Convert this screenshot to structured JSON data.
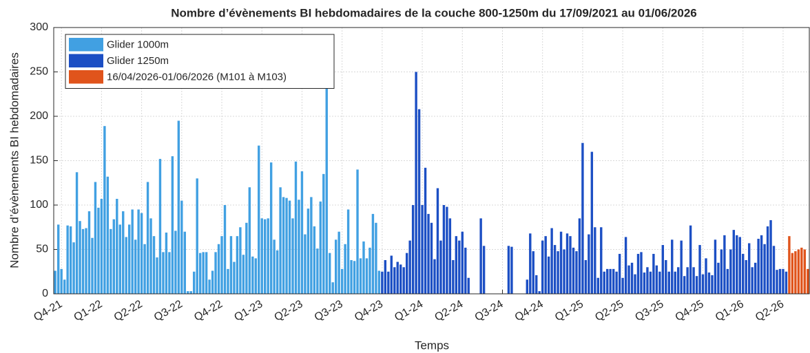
{
  "chart_data": {
    "type": "bar",
    "title": "Nombre d’évènements BI hebdomadaires de la couche 800-1250m du 17/09/2021 au 01/06/2026",
    "xlabel": "Temps",
    "ylabel": "Nombre d’évènements BI hebdomadaires",
    "ylim": [
      0,
      300
    ],
    "yticks": [
      0,
      50,
      100,
      150,
      200,
      250,
      300
    ],
    "grid": true,
    "legend": "upper left",
    "categories": [
      null,
      null,
      "Q4-21",
      null,
      null,
      null,
      null,
      null,
      null,
      null,
      null,
      null,
      null,
      null,
      null,
      "Q1-22",
      null,
      null,
      null,
      null,
      null,
      null,
      null,
      null,
      null,
      null,
      null,
      null,
      "Q2-22",
      null,
      null,
      null,
      null,
      null,
      null,
      null,
      null,
      null,
      null,
      null,
      null,
      "Q3-22",
      null,
      null,
      null,
      null,
      null,
      null,
      null,
      null,
      null,
      null,
      null,
      null,
      "Q4-22",
      null,
      null,
      null,
      null,
      null,
      null,
      null,
      null,
      null,
      null,
      null,
      null,
      "Q1-23",
      null,
      null,
      null,
      null,
      null,
      null,
      null,
      null,
      null,
      null,
      null,
      null,
      "Q2-23",
      null,
      null,
      null,
      null,
      null,
      null,
      null,
      null,
      null,
      null,
      null,
      null,
      "Q3-23",
      null,
      null,
      null,
      null,
      null,
      null,
      null,
      null,
      null,
      null,
      null,
      null,
      "Q4-23",
      null,
      null,
      null,
      null,
      null,
      null,
      null,
      null,
      null,
      null,
      null,
      null,
      "Q1-24",
      null,
      null,
      null,
      null,
      null,
      null,
      null,
      null,
      null,
      null,
      null,
      null,
      "Q2-24",
      null,
      null,
      null,
      null,
      null,
      null,
      null,
      null,
      null,
      null,
      null,
      null,
      "Q3-24",
      null,
      null,
      null,
      null,
      null,
      null,
      null,
      null,
      null,
      null,
      null,
      null,
      "Q4-24",
      null,
      null,
      null,
      null,
      null,
      null,
      null,
      null,
      null,
      null,
      null,
      null,
      "Q1-25",
      null,
      null,
      null,
      null,
      null,
      null,
      null,
      null,
      null,
      null,
      null,
      null,
      "Q2-25",
      null,
      null,
      null,
      null,
      null,
      null,
      null,
      null,
      null,
      null,
      null,
      null,
      "Q3-25",
      null,
      null,
      null,
      null,
      null,
      null,
      null,
      null,
      null,
      null,
      null,
      null,
      "Q4-25",
      null,
      null,
      null,
      null,
      null,
      null,
      null,
      null,
      null,
      null,
      null,
      null,
      "Q1-26",
      null,
      null,
      null,
      null,
      null,
      null,
      null,
      null,
      null,
      null,
      null,
      null,
      "Q2-26",
      null,
      null,
      null,
      null,
      null,
      null,
      null,
      null
    ],
    "series": [
      {
        "name": "Glider 1000m",
        "color": "#41a0e2",
        "values": [
          26,
          78,
          28,
          16,
          77,
          76,
          58,
          137,
          82,
          73,
          74,
          93,
          63,
          126,
          97,
          107,
          189,
          132,
          73,
          84,
          107,
          78,
          93,
          64,
          78,
          95,
          61,
          95,
          91,
          56,
          126,
          85,
          65,
          41,
          152,
          47,
          69,
          47,
          155,
          71,
          195,
          105,
          70,
          3,
          3,
          25,
          130,
          46,
          47,
          47,
          16,
          26,
          47,
          56,
          65,
          100,
          28,
          65,
          36,
          65,
          75,
          44,
          80,
          120,
          42,
          40,
          167,
          85,
          84,
          85,
          148,
          61,
          49,
          120,
          109,
          108,
          105,
          85,
          149,
          106,
          138,
          67,
          96,
          109,
          76,
          51,
          104,
          135,
          240,
          46,
          13,
          61,
          70,
          28,
          56,
          95,
          38,
          37,
          140,
          40,
          59,
          40,
          52,
          90,
          80,
          26,
          null,
          null,
          null,
          null,
          null,
          null,
          null,
          null,
          null,
          null,
          null,
          null,
          null,
          null,
          null,
          null,
          null,
          null,
          null,
          null,
          null,
          null,
          null,
          null,
          null,
          null,
          null,
          null,
          null,
          null,
          null,
          null,
          null,
          null,
          null,
          null,
          null,
          null,
          null,
          null,
          null,
          null,
          null,
          null,
          null,
          null,
          null,
          null,
          null,
          null,
          null,
          null,
          null,
          null,
          null,
          null,
          null,
          null,
          null,
          null,
          null,
          null,
          null,
          null,
          null,
          null,
          null,
          null,
          null,
          null,
          null,
          null,
          null,
          null,
          null,
          null,
          null,
          null,
          null,
          null,
          null,
          null,
          null,
          null,
          null,
          null,
          null,
          null,
          null,
          null,
          null,
          null,
          null,
          null,
          null,
          null,
          null,
          null,
          null,
          null,
          null,
          null,
          null,
          null,
          null,
          null,
          null,
          null,
          null,
          null,
          null,
          null,
          null,
          null,
          null,
          null,
          null,
          null,
          null,
          null,
          null,
          null,
          null,
          null,
          null,
          null,
          null,
          null,
          null,
          null,
          null,
          null,
          null,
          null,
          null,
          null,
          null,
          null,
          null
        ]
      },
      {
        "name": "Glider 1250m",
        "color": "#1c4fc4",
        "values": [
          null,
          null,
          null,
          null,
          null,
          null,
          null,
          null,
          null,
          null,
          null,
          null,
          null,
          null,
          null,
          null,
          null,
          null,
          null,
          null,
          null,
          null,
          null,
          null,
          null,
          null,
          null,
          null,
          null,
          null,
          null,
          null,
          null,
          null,
          null,
          null,
          null,
          null,
          null,
          null,
          null,
          null,
          null,
          null,
          null,
          null,
          null,
          null,
          null,
          null,
          null,
          null,
          null,
          null,
          null,
          null,
          null,
          null,
          null,
          null,
          null,
          null,
          null,
          null,
          null,
          null,
          null,
          null,
          null,
          null,
          null,
          null,
          null,
          null,
          null,
          null,
          null,
          null,
          null,
          null,
          null,
          null,
          null,
          null,
          null,
          null,
          null,
          null,
          null,
          null,
          null,
          null,
          null,
          null,
          null,
          null,
          null,
          null,
          null,
          null,
          null,
          null,
          null,
          null,
          null,
          null,
          25,
          38,
          25,
          43,
          30,
          36,
          33,
          30,
          46,
          60,
          100,
          250,
          208,
          100,
          142,
          90,
          80,
          39,
          119,
          60,
          100,
          98,
          85,
          38,
          65,
          60,
          70,
          52,
          18,
          0,
          0,
          0,
          85,
          54,
          0,
          0,
          0,
          0,
          0,
          0,
          0,
          54,
          53,
          0,
          0,
          0,
          0,
          16,
          68,
          48,
          21,
          3,
          60,
          65,
          42,
          74,
          55,
          48,
          70,
          50,
          68,
          65,
          52,
          48,
          85,
          170,
          38,
          67,
          160,
          75,
          18,
          75,
          25,
          28,
          28,
          28,
          25,
          45,
          18,
          64,
          32,
          35,
          22,
          45,
          47,
          24,
          30,
          25,
          45,
          32,
          25,
          55,
          38,
          25,
          61,
          25,
          30,
          60,
          20,
          30,
          77,
          30,
          20,
          55,
          22,
          40,
          24,
          21,
          61,
          35,
          50,
          66,
          28,
          50,
          72,
          66,
          64,
          45,
          38,
          57,
          30,
          35,
          62,
          66,
          56,
          76,
          83,
          54,
          27,
          28,
          28,
          25,
          null,
          null,
          null,
          null,
          null,
          null,
          null
        ]
      },
      {
        "name": "16/04/2026-01/06/2026 (M101 à M103)",
        "color": "#e0541c",
        "values": [
          null,
          null,
          null,
          null,
          null,
          null,
          null,
          null,
          null,
          null,
          null,
          null,
          null,
          null,
          null,
          null,
          null,
          null,
          null,
          null,
          null,
          null,
          null,
          null,
          null,
          null,
          null,
          null,
          null,
          null,
          null,
          null,
          null,
          null,
          null,
          null,
          null,
          null,
          null,
          null,
          null,
          null,
          null,
          null,
          null,
          null,
          null,
          null,
          null,
          null,
          null,
          null,
          null,
          null,
          null,
          null,
          null,
          null,
          null,
          null,
          null,
          null,
          null,
          null,
          null,
          null,
          null,
          null,
          null,
          null,
          null,
          null,
          null,
          null,
          null,
          null,
          null,
          null,
          null,
          null,
          null,
          null,
          null,
          null,
          null,
          null,
          null,
          null,
          null,
          null,
          null,
          null,
          null,
          null,
          null,
          null,
          null,
          null,
          null,
          null,
          null,
          null,
          null,
          null,
          null,
          null,
          null,
          null,
          null,
          null,
          null,
          null,
          null,
          null,
          null,
          null,
          null,
          null,
          null,
          null,
          null,
          null,
          null,
          null,
          null,
          null,
          null,
          null,
          null,
          null,
          null,
          null,
          null,
          null,
          null,
          null,
          null,
          null,
          null,
          null,
          null,
          null,
          null,
          null,
          null,
          null,
          null,
          null,
          null,
          null,
          null,
          null,
          null,
          null,
          null,
          null,
          null,
          null,
          null,
          null,
          null,
          null,
          null,
          null,
          null,
          null,
          null,
          null,
          null,
          null,
          null,
          null,
          null,
          null,
          null,
          null,
          null,
          null,
          null,
          null,
          null,
          null,
          null,
          null,
          null,
          null,
          null,
          null,
          null,
          null,
          null,
          null,
          null,
          null,
          null,
          null,
          null,
          null,
          null,
          null,
          null,
          null,
          null,
          null,
          null,
          null,
          null,
          null,
          null,
          null,
          null,
          null,
          null,
          null,
          null,
          null,
          null,
          null,
          null,
          null,
          null,
          null,
          null,
          null,
          null,
          null,
          null,
          null,
          null,
          null,
          null,
          null,
          null,
          null,
          null,
          null,
          null,
          null,
          65,
          46,
          48,
          50,
          52,
          50,
          28
        ]
      }
    ]
  }
}
